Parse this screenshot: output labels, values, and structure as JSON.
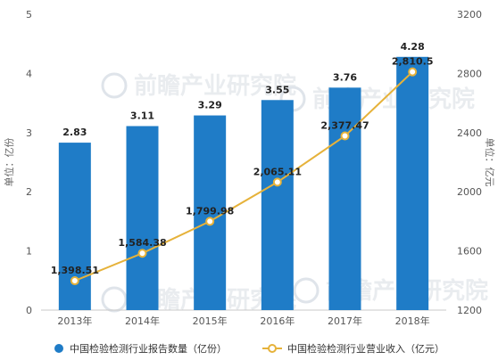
{
  "chart_data": {
    "type": "bar",
    "categories": [
      "2013年",
      "2014年",
      "2015年",
      "2016年",
      "2017年",
      "2018年"
    ],
    "series": [
      {
        "name": "中国检验检测行业报告数量（亿份）",
        "kind": "bar",
        "axis": "left",
        "color": "#1f7cc7",
        "values": [
          2.83,
          3.11,
          3.29,
          3.55,
          3.76,
          4.28
        ],
        "labels": [
          "2.83",
          "3.11",
          "3.29",
          "3.55",
          "3.76",
          "4.28"
        ]
      },
      {
        "name": "中国检验检测行业营业收入（亿元）",
        "kind": "line",
        "axis": "right",
        "color": "#e6b23a",
        "values": [
          1398.51,
          1584.38,
          1799.98,
          2065.11,
          2377.47,
          2810.5
        ],
        "labels": [
          "1,398.51",
          "1,584.38",
          "1,799.98",
          "2,065.11",
          "2,377.47",
          "2,810.5"
        ]
      }
    ],
    "left_axis": {
      "label": "单位：亿份",
      "min": 0,
      "max": 5,
      "ticks": [
        "0",
        "1",
        "2",
        "3",
        "4",
        "5"
      ]
    },
    "right_axis": {
      "label": "单位：亿元",
      "min": 1200,
      "max": 3200,
      "ticks": [
        "1200",
        "1600",
        "2000",
        "2400",
        "2800",
        "3200"
      ]
    },
    "grid": false,
    "legend_position": "bottom",
    "watermark": "前瞻产业研究院"
  }
}
